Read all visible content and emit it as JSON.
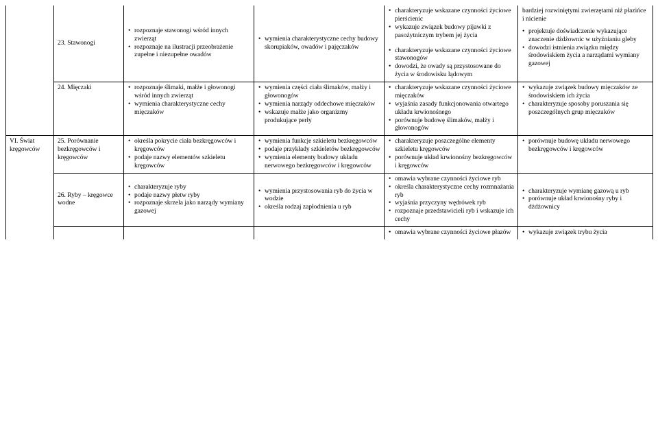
{
  "rows": [
    {
      "c1": "",
      "c2": "23. Stawonogi",
      "c3": [
        "rozpoznaje stawonogi wśród innych zwierząt",
        "rozpoznaje na ilustracji przeobrażenie zupełne i niezupełne owadów"
      ],
      "c4": [
        "wymienia charakterystyczne cechy budowy skorupiaków, owadów i pajęczaków"
      ],
      "c5": [
        "charakteryzuje wskazane czynności życiowe pierścienic",
        "wykazuje związek budowy pijawki z pasożytniczym trybem jej życia",
        "charakteryzuje wskazane czynności życiowe stawonogów",
        "dowodzi, że owady są przystosowane do życia w środowisku lądowym"
      ],
      "c6": [
        "bardziej rozwiniętymi zwierzętami niż płazińce i nicienie",
        "projektuje doświadczenie wykazujące znaczenie dżdżownic w użyźnianiu gleby",
        "dowodzi istnienia związku między środowiskiem życia a narządami wymiany gazowej"
      ]
    },
    {
      "c1": "",
      "c2": "24. Mięczaki",
      "c3": [
        "rozpoznaje ślimaki, małże i głowonogi wśród innych zwierząt",
        "wymienia charakterystyczne cechy mięczaków"
      ],
      "c4": [
        "wymienia części ciała ślimaków, małży i głowonogów",
        "wymienia narządy oddechowe mięczaków",
        "wskazuje małże jako organizmy produkujące perły"
      ],
      "c5": [
        "charakteryzuje wskazane czynności życiowe mięczaków",
        "wyjaśnia zasady funkcjonowania otwartego układu krwionośnego",
        "porównuje budowę ślimaków, małży i głowonogów"
      ],
      "c6": [
        "wykazuje związek budowy mięczaków ze środowiskiem ich życia",
        "charakteryzuje sposoby poruszania się poszczególnych grup mięczaków"
      ]
    },
    {
      "c1": "VI. Świat kręgowców",
      "c2": "25. Porównanie bezkręgowców i kręgowców",
      "c3": [
        "określa pokrycie ciała bezkręgowców i kręgowców",
        "podaje nazwy elementów szkieletu kręgowców"
      ],
      "c4": [
        "wymienia funkcje szkieletu bezkręgowców",
        "podaje przykłady szkieletów bezkręgowców",
        "wymienia elementy budowy układu nerwowego bezkręgowców i kręgowców"
      ],
      "c5": [
        "charakteryzuje poszczególne elementy szkieletu kręgowców",
        "porównuje układ krwionośny bezkręgowców i kręgowców"
      ],
      "c6": [
        "porównuje budowę układu nerwowego bezkręgowców i kręgowców"
      ]
    },
    {
      "c1": "",
      "c2": "26. Ryby – kręgowce wodne",
      "c3": [
        "charakteryzuje ryby",
        "podaje nazwy płetw ryby",
        "rozpoznaje skrzela jako narządy wymiany gazowej"
      ],
      "c4": [
        "wymienia przystosowania ryb do życia w wodzie",
        "określa rodzaj zapłodnienia u ryb"
      ],
      "c5": [
        "omawia wybrane czynności życiowe ryb",
        "określa charakterystyczne cechy rozmnażania ryb",
        "wyjaśnia przyczyny wędrówek ryb",
        "rozpoznaje przedstawicieli ryb i wskazuje ich cechy"
      ],
      "c6": [
        "charakteryzuje wymianę gazową u ryb",
        "porównuje układ krwionośny ryby i dżdżownicy"
      ]
    },
    {
      "c1": "",
      "c2": "",
      "c3": [],
      "c4": [],
      "c5": [
        "omawia wybrane czynności życiowe płazów"
      ],
      "c6": [
        "wykazuje związek trybu życia"
      ]
    }
  ]
}
